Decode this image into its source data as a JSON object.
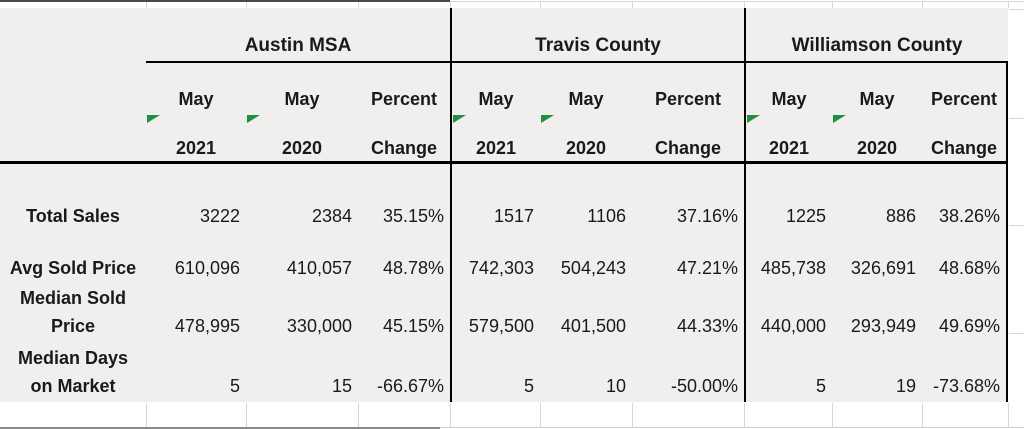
{
  "colors": {
    "table_background": "#f0efee",
    "border_black": "#000000",
    "gridline_gray": "#d6d6d6",
    "error_indicator_green": "#1e8f3e",
    "text": "#1a1a1a"
  },
  "table": {
    "sections": [
      {
        "title": "Austin MSA"
      },
      {
        "title": "Travis County"
      },
      {
        "title": "Williamson County"
      }
    ],
    "headers": {
      "col1": {
        "line1": "May",
        "line2": "2021"
      },
      "col2": {
        "line1": "May",
        "line2": "2020"
      },
      "col3": {
        "line1": "Percent",
        "line2": "Change"
      }
    },
    "rows": [
      {
        "label_lines": [
          "Total Sales",
          ""
        ],
        "austin": [
          "3222",
          "2384",
          "35.15%"
        ],
        "travis": [
          "1517",
          "1106",
          "37.16%"
        ],
        "williamson": [
          "1225",
          "886",
          "38.26%"
        ]
      },
      {
        "label_lines": [
          "Avg Sold Price",
          ""
        ],
        "austin": [
          "610,096",
          "410,057",
          "48.78%"
        ],
        "travis": [
          "742,303",
          "504,243",
          "47.21%"
        ],
        "williamson": [
          "485,738",
          "326,691",
          "48.68%"
        ]
      },
      {
        "label_lines": [
          "Median Sold",
          "Price"
        ],
        "austin": [
          "478,995",
          "330,000",
          "45.15%"
        ],
        "travis": [
          "579,500",
          "401,500",
          "44.33%"
        ],
        "williamson": [
          "440,000",
          "293,949",
          "49.69%"
        ]
      },
      {
        "label_lines": [
          "Median Days",
          "on Market"
        ],
        "austin": [
          "5",
          "15",
          "-66.67%"
        ],
        "travis": [
          "5",
          "10",
          "-50.00%"
        ],
        "williamson": [
          "5",
          "19",
          "-73.68%"
        ]
      }
    ]
  }
}
